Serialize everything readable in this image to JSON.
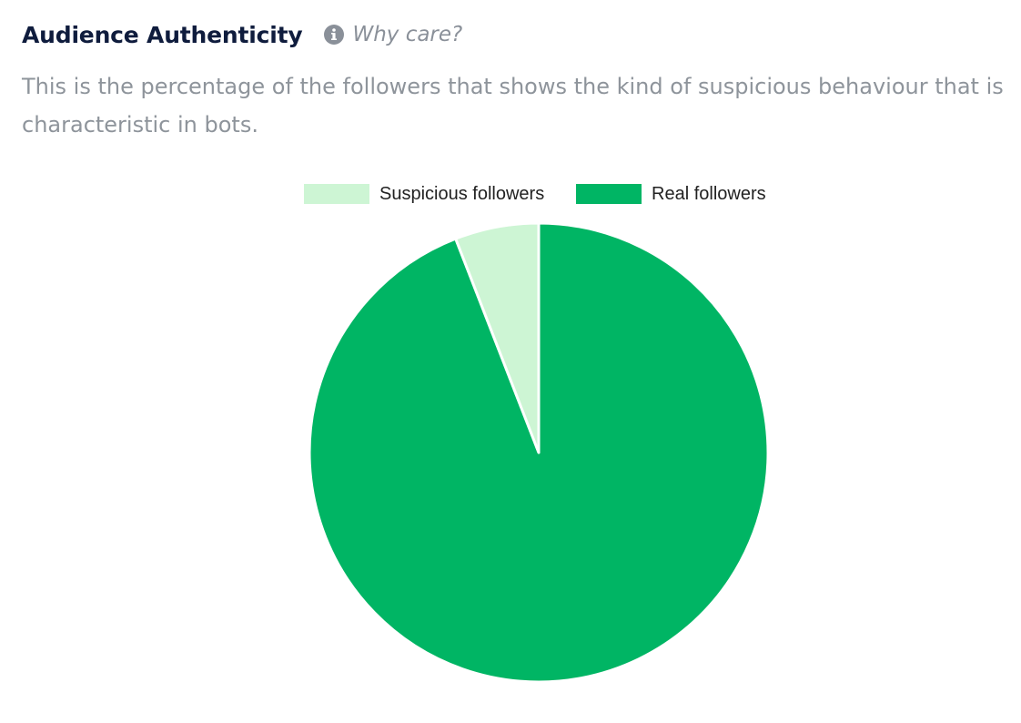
{
  "header": {
    "title": "Audience Authenticity",
    "why_label": "Why care?"
  },
  "description": "This is the percentage of the followers that shows the kind of suspicious behaviour that is characteristic in bots.",
  "legend": {
    "items": [
      {
        "label": "Suspicious followers",
        "color": "#cdf5d4"
      },
      {
        "label": "Real followers",
        "color": "#00b564"
      }
    ]
  },
  "chart_data": {
    "type": "pie",
    "categories": [
      "Suspicious followers",
      "Real followers"
    ],
    "values": [
      5.9,
      94.1
    ],
    "colors": [
      "#cdf5d4",
      "#00b564"
    ],
    "legend_position": "top"
  }
}
